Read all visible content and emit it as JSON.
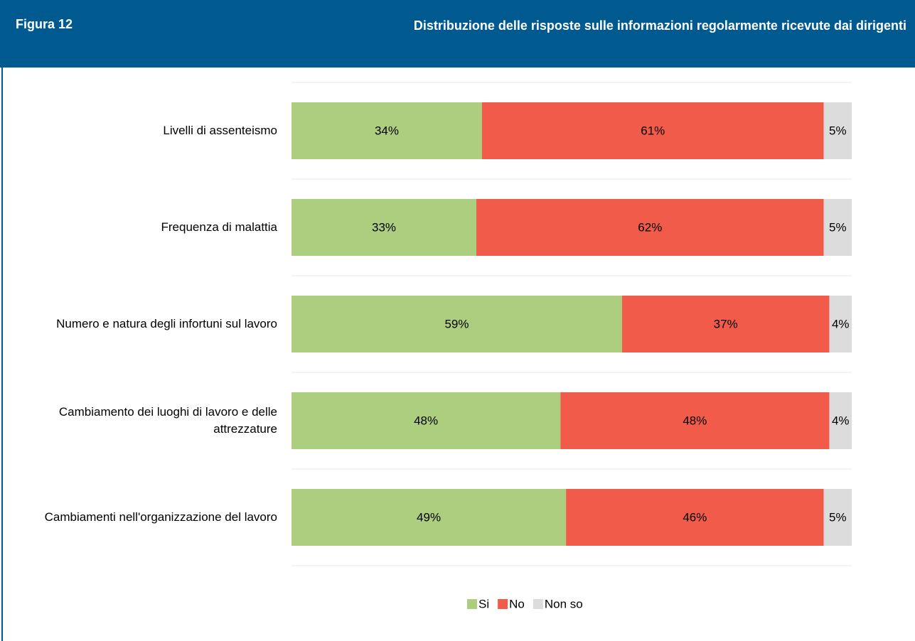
{
  "header": {
    "figure": "Figura 12",
    "title": "Distribuzione delle risposte sulle informazioni regolarmente ricevute dai dirigenti"
  },
  "chart_data": {
    "type": "stacked_barh",
    "categories": [
      "Livelli di assenteismo",
      "Frequenza di malattia",
      "Numero e natura degli infortuni sul lavoro",
      "Cambiamento dei luoghi di lavoro e delle attrezzature",
      "Cambiamenti nell'organizzazione del lavoro"
    ],
    "xlim": [
      0,
      100
    ],
    "series": [
      {
        "name": "Si",
        "color": "#acce7e",
        "values": [
          34,
          33,
          59,
          48,
          49
        ],
        "value_labels": [
          "34%",
          "33%",
          "59%",
          "48%",
          "49%"
        ]
      },
      {
        "name": "No",
        "color": "#f15b4a",
        "values": [
          61,
          62,
          37,
          48,
          46
        ],
        "value_labels": [
          "61%",
          "62%",
          "37%",
          "48%",
          "46%"
        ]
      },
      {
        "name": "Non so",
        "color": "#dcdcdc",
        "values": [
          5,
          5,
          4,
          4,
          5
        ],
        "value_labels": [
          "5%",
          "5%",
          "4%",
          "4%",
          "5%"
        ]
      }
    ]
  }
}
